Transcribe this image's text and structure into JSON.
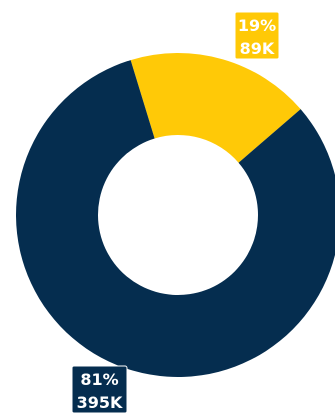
{
  "chart_data": {
    "type": "pie",
    "donut": true,
    "title": "",
    "slices": [
      {
        "percent_label": "19%",
        "value_label": "89K",
        "value": 89000,
        "color": "#FFC907"
      },
      {
        "percent_label": "81%",
        "value_label": "395K",
        "value": 395000,
        "color": "#052D4F"
      }
    ],
    "legend": "none"
  }
}
